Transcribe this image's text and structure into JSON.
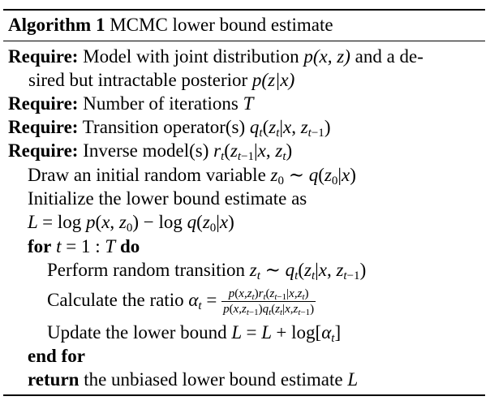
{
  "algorithm": {
    "label": "Algorithm 1",
    "title": "MCMC lower bound estimate"
  },
  "lines": {
    "req1_kw": "Require:",
    "req1_text_a": "Model with joint distribution",
    "req1_math": "p(x, z)",
    "req1_text_b": "and a de-",
    "req1_cont_a": "sired but intractable posterior",
    "req1_cont_math": "p(z|x)",
    "req2_kw": "Require:",
    "req2_text": "Number of iterations",
    "req2_math": "T",
    "req3_kw": "Require:",
    "req3_text": "Transition operator(s)",
    "req4_kw": "Require:",
    "req4_text": "Inverse model(s)",
    "draw_text": "Draw an initial random variable",
    "init_text": "Initialize the lower bound estimate as",
    "for_kw": "for",
    "for_do": "do",
    "perform_text": "Perform random transition",
    "calc_text": "Calculate the ratio",
    "update_text": "Update the lower bound",
    "endfor_kw": "end for",
    "return_kw": "return",
    "return_text": "the unbiased lower bound estimate",
    "return_math": "L"
  }
}
